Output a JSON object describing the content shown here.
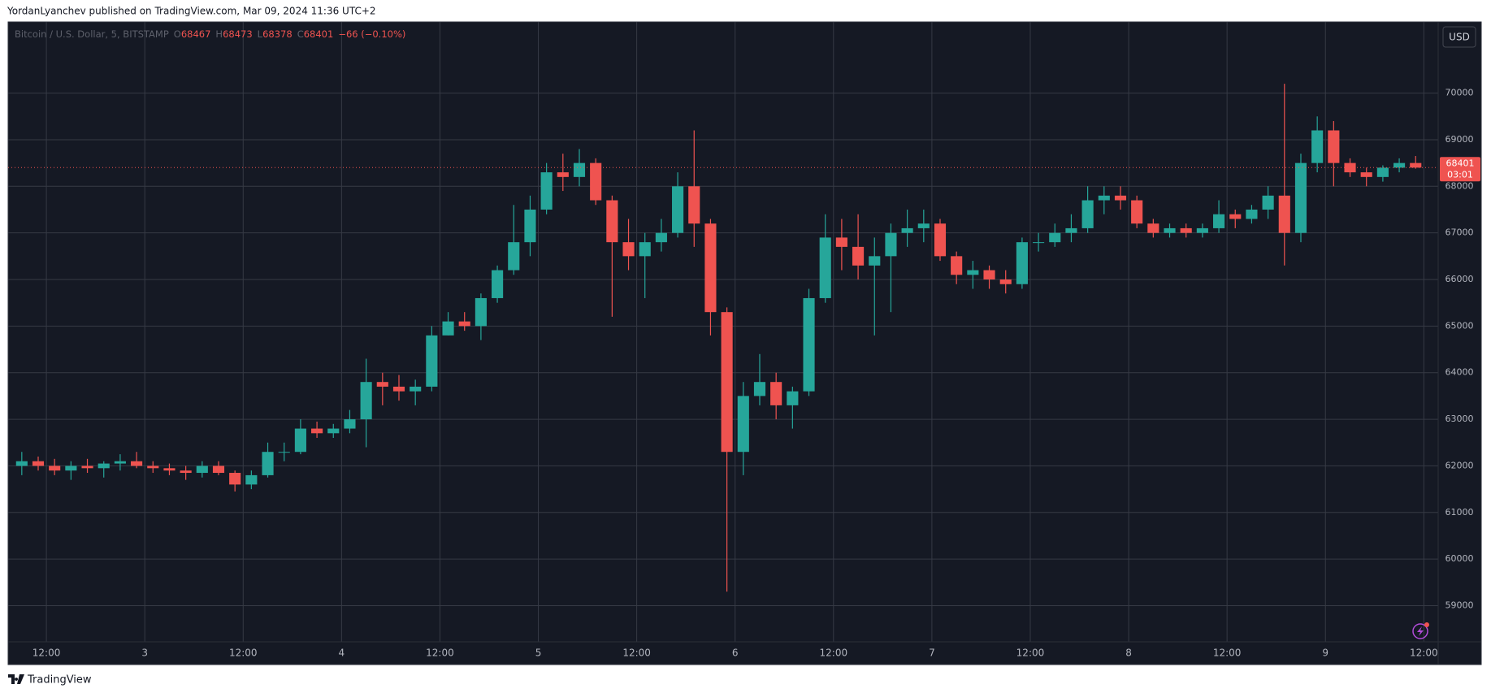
{
  "header": "YordanLyanchev published on TradingView.com, Mar 09, 2024 11:36 UTC+2",
  "footer": "TradingView",
  "chart_data": {
    "type": "candlestick",
    "legend": {
      "symbol": "Bitcoin / U.S. Dollar, 5, BITSTAMP",
      "items": [
        {
          "label": "O",
          "value": 68467
        },
        {
          "label": "H",
          "value": 68473
        },
        {
          "label": "L",
          "value": 68378
        },
        {
          "label": "C",
          "value": 68401
        }
      ],
      "change": "−66 (−0.10%)"
    },
    "currency": "USD",
    "last_price": 68401,
    "countdown": "03:01",
    "up_color": "#26a69a",
    "down_color": "#ef5350",
    "grid": true,
    "x": [
      "2024-03-02T08:00",
      "2024-03-02T10:00",
      "2024-03-02T12:00",
      "2024-03-02T14:00",
      "2024-03-02T16:00",
      "2024-03-02T18:00",
      "2024-03-02T20:00",
      "2024-03-02T22:00",
      "2024-03-03T00:00",
      "2024-03-03T02:00",
      "2024-03-03T04:00",
      "2024-03-03T06:00",
      "2024-03-03T08:00",
      "2024-03-03T10:00",
      "2024-03-03T12:00",
      "2024-03-03T14:00",
      "2024-03-03T16:00",
      "2024-03-03T18:00",
      "2024-03-03T20:00",
      "2024-03-03T22:00",
      "2024-03-04T00:00",
      "2024-03-04T02:00",
      "2024-03-04T04:00",
      "2024-03-04T06:00",
      "2024-03-04T08:00",
      "2024-03-04T10:00",
      "2024-03-04T12:00",
      "2024-03-04T14:00",
      "2024-03-04T16:00",
      "2024-03-04T18:00",
      "2024-03-04T20:00",
      "2024-03-04T22:00",
      "2024-03-05T00:00",
      "2024-03-05T02:00",
      "2024-03-05T04:00",
      "2024-03-05T06:00",
      "2024-03-05T08:00",
      "2024-03-05T10:00",
      "2024-03-05T12:00",
      "2024-03-05T14:00",
      "2024-03-05T16:00",
      "2024-03-05T18:00",
      "2024-03-05T20:00",
      "2024-03-05T22:00",
      "2024-03-06T00:00",
      "2024-03-06T02:00",
      "2024-03-06T04:00",
      "2024-03-06T06:00",
      "2024-03-06T08:00",
      "2024-03-06T10:00",
      "2024-03-06T12:00",
      "2024-03-06T14:00",
      "2024-03-06T16:00",
      "2024-03-06T18:00",
      "2024-03-06T20:00",
      "2024-03-06T22:00",
      "2024-03-07T00:00",
      "2024-03-07T02:00",
      "2024-03-07T04:00",
      "2024-03-07T06:00",
      "2024-03-07T08:00",
      "2024-03-07T10:00",
      "2024-03-07T12:00",
      "2024-03-07T14:00",
      "2024-03-07T16:00",
      "2024-03-07T18:00",
      "2024-03-07T20:00",
      "2024-03-07T22:00",
      "2024-03-08T00:00",
      "2024-03-08T02:00",
      "2024-03-08T04:00",
      "2024-03-08T06:00",
      "2024-03-08T08:00",
      "2024-03-08T10:00",
      "2024-03-08T12:00",
      "2024-03-08T14:00",
      "2024-03-08T16:00",
      "2024-03-08T18:00",
      "2024-03-08T20:00",
      "2024-03-08T22:00",
      "2024-03-09T00:00",
      "2024-03-09T02:00",
      "2024-03-09T04:00",
      "2024-03-09T06:00",
      "2024-03-09T08:00",
      "2024-03-09T10:00"
    ],
    "open": [
      62000,
      62100,
      62000,
      61900,
      62000,
      61950,
      62050,
      62100,
      62000,
      61950,
      61900,
      61850,
      62000,
      61850,
      61600,
      61800,
      62300,
      62300,
      62800,
      62700,
      62800,
      63000,
      63800,
      63700,
      63600,
      63700,
      64800,
      65100,
      65000,
      65600,
      66200,
      66800,
      67500,
      68300,
      68200,
      68500,
      67700,
      66800,
      66500,
      66800,
      67000,
      68000,
      67200,
      65300,
      62300,
      63500,
      63800,
      63300,
      63600,
      65600,
      66900,
      66700,
      66300,
      66500,
      67000,
      67100,
      67200,
      66500,
      66100,
      66200,
      66000,
      65900,
      66800,
      66800,
      67000,
      67100,
      67700,
      67800,
      67700,
      67200,
      67000,
      67100,
      67000,
      67100,
      67400,
      67300,
      67500,
      67800,
      67000,
      68500,
      69200,
      68500,
      68300,
      68200,
      68400,
      68500
    ],
    "high": [
      62300,
      62200,
      62150,
      62100,
      62150,
      62100,
      62250,
      62300,
      62100,
      62050,
      62000,
      62100,
      62100,
      61900,
      61900,
      62500,
      62500,
      63000,
      62950,
      62900,
      63200,
      64300,
      64000,
      63950,
      63850,
      65000,
      65300,
      65300,
      65700,
      66300,
      67600,
      67800,
      68500,
      68700,
      68800,
      68600,
      67800,
      67300,
      67000,
      67300,
      68300,
      69200,
      67300,
      65400,
      63800,
      64400,
      64000,
      63700,
      65800,
      67400,
      67300,
      67400,
      66900,
      67200,
      67500,
      67500,
      67300,
      66600,
      66400,
      66300,
      66200,
      66900,
      67000,
      67200,
      67400,
      68000,
      68000,
      68000,
      67800,
      67300,
      67200,
      67200,
      67200,
      67700,
      67500,
      67600,
      68000,
      70200,
      68700,
      69500,
      69400,
      68600,
      68400,
      68450,
      68600,
      68650
    ],
    "low": [
      61800,
      61900,
      61800,
      61700,
      61850,
      61750,
      61900,
      61950,
      61850,
      61800,
      61700,
      61750,
      61800,
      61450,
      61500,
      61750,
      62100,
      62250,
      62600,
      62600,
      62700,
      62400,
      63300,
      63400,
      63300,
      63600,
      64800,
      64900,
      64700,
      65500,
      66100,
      66500,
      67400,
      67900,
      68000,
      67600,
      65200,
      66200,
      65600,
      66600,
      66900,
      66700,
      64800,
      59300,
      61800,
      63300,
      63000,
      62800,
      63500,
      65500,
      66200,
      66000,
      64800,
      65300,
      66700,
      66800,
      66400,
      65900,
      65800,
      65800,
      65700,
      65800,
      66600,
      66700,
      66800,
      67000,
      67400,
      67500,
      67100,
      66900,
      66900,
      66900,
      66900,
      67000,
      67100,
      67200,
      67300,
      66300,
      66800,
      68300,
      68000,
      68200,
      68000,
      68100,
      68300,
      68378
    ],
    "close": [
      62100,
      62000,
      61900,
      62000,
      61950,
      62050,
      62100,
      62000,
      61950,
      61900,
      61850,
      62000,
      61850,
      61600,
      61800,
      62300,
      62300,
      62800,
      62700,
      62800,
      63000,
      63800,
      63700,
      63600,
      63700,
      64800,
      65100,
      65000,
      65600,
      66200,
      66800,
      67500,
      68300,
      68200,
      68500,
      67700,
      66800,
      66500,
      66800,
      67000,
      68000,
      67200,
      65300,
      62300,
      63500,
      63800,
      63300,
      63600,
      65600,
      66900,
      66700,
      66300,
      66500,
      67000,
      67100,
      67200,
      66500,
      66100,
      66200,
      66000,
      65900,
      66800,
      66800,
      67000,
      67100,
      67700,
      67800,
      67700,
      67200,
      67000,
      67100,
      67000,
      67100,
      67400,
      67300,
      67500,
      67800,
      67000,
      68500,
      69200,
      68500,
      68300,
      68200,
      68400,
      68500,
      68401
    ],
    "xlim": [
      "2024-03-02T07:20",
      "2024-03-09T13:45"
    ],
    "xticks": [
      {
        "value": "2024-03-02T12:00",
        "label": "12:00"
      },
      {
        "value": "2024-03-03T00:00",
        "label": "3"
      },
      {
        "value": "2024-03-03T12:00",
        "label": "12:00"
      },
      {
        "value": "2024-03-04T00:00",
        "label": "4"
      },
      {
        "value": "2024-03-04T12:00",
        "label": "12:00"
      },
      {
        "value": "2024-03-05T00:00",
        "label": "5"
      },
      {
        "value": "2024-03-05T12:00",
        "label": "12:00"
      },
      {
        "value": "2024-03-06T00:00",
        "label": "6"
      },
      {
        "value": "2024-03-06T12:00",
        "label": "12:00"
      },
      {
        "value": "2024-03-07T00:00",
        "label": "7"
      },
      {
        "value": "2024-03-07T12:00",
        "label": "12:00"
      },
      {
        "value": "2024-03-08T00:00",
        "label": "8"
      },
      {
        "value": "2024-03-08T12:00",
        "label": "12:00"
      },
      {
        "value": "2024-03-09T00:00",
        "label": "9"
      },
      {
        "value": "2024-03-09T12:00",
        "label": "12:00"
      }
    ],
    "ylim": [
      58224,
      71510
    ],
    "yticks": [
      59000,
      60000,
      61000,
      62000,
      63000,
      64000,
      65000,
      66000,
      67000,
      68000,
      69000,
      70000
    ]
  }
}
